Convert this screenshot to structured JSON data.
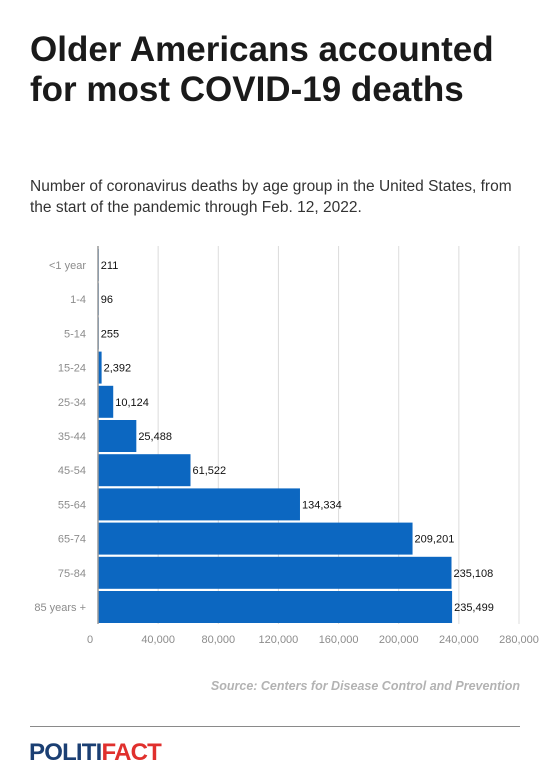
{
  "title": "Older Americans accounted for most COVID-19 deaths",
  "subtitle": "Number of coronavirus deaths by age group in the United States, from the start of the pandemic through Feb. 12, 2022.",
  "source": "Source: Centers for Disease Control and Prevention",
  "logo": {
    "part1": "POLITI",
    "part2": "FACT"
  },
  "colors": {
    "bar": "#0c67c1",
    "logo_blue": "#1b3f73",
    "logo_red": "#e0302d"
  },
  "chart_data": {
    "type": "bar",
    "orientation": "horizontal",
    "categories": [
      "<1 year",
      "1-4",
      "5-14",
      "15-24",
      "25-34",
      "35-44",
      "45-54",
      "55-64",
      "65-74",
      "75-84",
      "85 years +"
    ],
    "values": [
      211,
      96,
      255,
      2392,
      10124,
      25488,
      61522,
      134334,
      209201,
      235108,
      235499
    ],
    "value_labels": [
      "211",
      "96",
      "255",
      "2,392",
      "10,124",
      "25,488",
      "61,522",
      "134,334",
      "209,201",
      "235,108",
      "235,499"
    ],
    "xticks": [
      0,
      40000,
      80000,
      120000,
      160000,
      200000,
      240000,
      280000
    ],
    "xtick_labels": [
      "0",
      "40,000",
      "80,000",
      "120,000",
      "160,000",
      "200,000",
      "240,000",
      "280,000"
    ],
    "xlim": [
      0,
      280000
    ],
    "grid": true,
    "title": "Older Americans accounted for most COVID-19 deaths",
    "xlabel": "",
    "ylabel": ""
  }
}
